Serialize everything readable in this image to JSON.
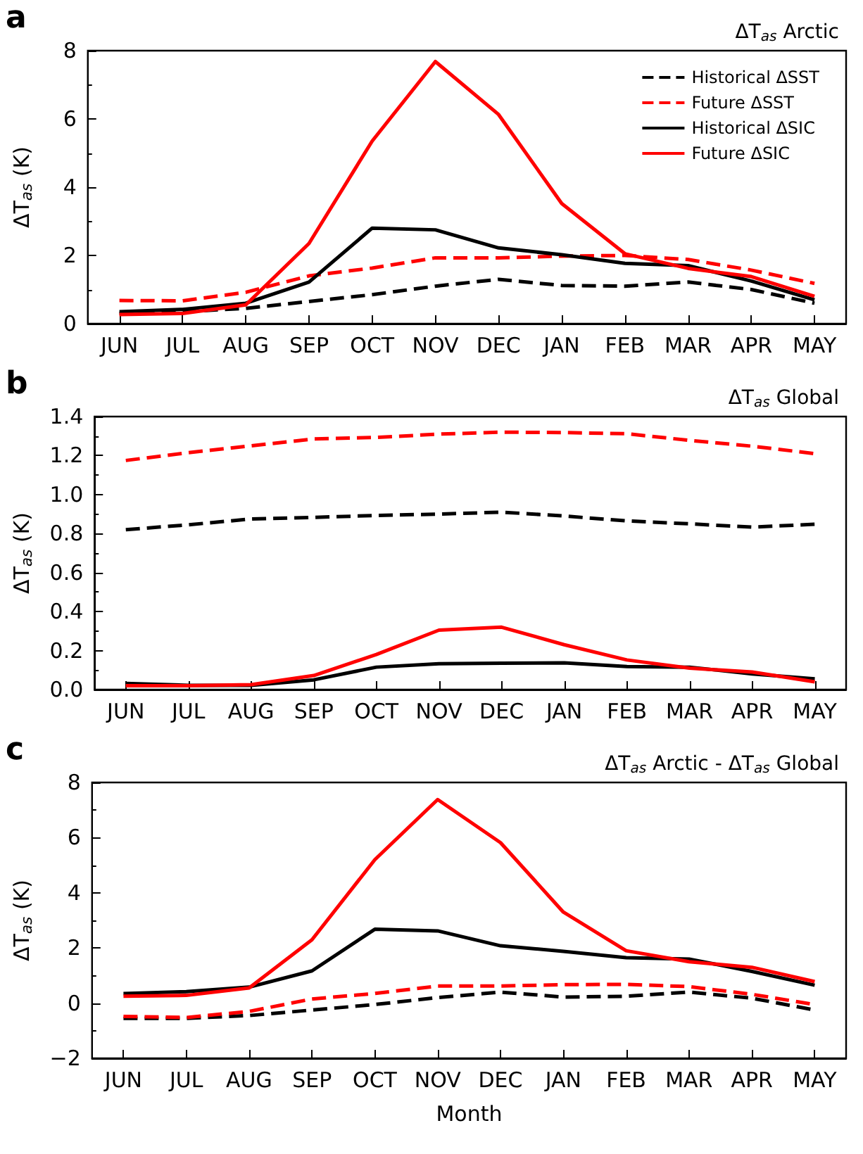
{
  "chart_data": [
    {
      "type": "line",
      "title": "ΔT$_{as}$ Arctic",
      "ylabel": "ΔT$_{as}$ (K)",
      "annotations": [
        "a"
      ],
      "categories": [
        "JUN",
        "JUL",
        "AUG",
        "SEP",
        "OCT",
        "NOV",
        "DEC",
        "JAN",
        "FEB",
        "MAR",
        "APR",
        "MAY"
      ],
      "ylim": [
        0,
        8
      ],
      "yticks": [
        0,
        2,
        4,
        6,
        8
      ],
      "legend": "top right",
      "grid": false,
      "series": [
        {
          "name": "Historical ΔSST",
          "color": "#000000",
          "line_style": "dashed",
          "values": [
            0.3,
            0.35,
            0.45,
            0.65,
            0.85,
            1.1,
            1.3,
            1.12,
            1.1,
            1.22,
            1.0,
            0.6
          ]
        },
        {
          "name": "Future ΔSST",
          "color": "#ff0000",
          "line_style": "dashed",
          "values": [
            0.68,
            0.67,
            0.92,
            1.4,
            1.63,
            1.93,
            1.93,
            1.98,
            2.0,
            1.88,
            1.57,
            1.18
          ]
        },
        {
          "name": "Historical ΔSIC",
          "color": "#000000",
          "line_style": "solid",
          "values": [
            0.35,
            0.42,
            0.6,
            1.22,
            2.8,
            2.75,
            2.22,
            2.02,
            1.77,
            1.7,
            1.25,
            0.7
          ]
        },
        {
          "name": "Future ΔSIC",
          "color": "#ff0000",
          "line_style": "solid",
          "values": [
            0.27,
            0.3,
            0.55,
            2.35,
            5.35,
            7.68,
            6.13,
            3.52,
            2.05,
            1.62,
            1.38,
            0.8
          ]
        }
      ]
    },
    {
      "type": "line",
      "title": "ΔT$_{as}$ Global",
      "ylabel": "ΔT$_{as}$ (K)",
      "annotations": [
        "b"
      ],
      "categories": [
        "JUN",
        "JUL",
        "AUG",
        "SEP",
        "OCT",
        "NOV",
        "DEC",
        "JAN",
        "FEB",
        "MAR",
        "APR",
        "MAY"
      ],
      "ylim": [
        0,
        1.4
      ],
      "yticks": [
        {
          "value": 0,
          "label": "0.0"
        },
        0.2,
        0.4,
        0.6,
        0.8,
        {
          "value": 1,
          "label": "1.0"
        },
        1.2,
        1.4
      ],
      "grid": false,
      "series": [
        {
          "color": "#000000",
          "line_style": "dashed",
          "values": [
            0.82,
            0.845,
            0.875,
            0.883,
            0.893,
            0.9,
            0.91,
            0.89,
            0.865,
            0.85,
            0.833,
            0.848
          ]
        },
        {
          "color": "#ff0000",
          "line_style": "dashed",
          "values": [
            1.175,
            1.215,
            1.25,
            1.285,
            1.293,
            1.31,
            1.32,
            1.318,
            1.312,
            1.278,
            1.248,
            1.21
          ]
        },
        {
          "color": "#000000",
          "line_style": "solid",
          "values": [
            0.032,
            0.022,
            0.022,
            0.05,
            0.115,
            0.133,
            0.135,
            0.137,
            0.118,
            0.115,
            0.08,
            0.055
          ]
        },
        {
          "color": "#ff0000",
          "line_style": "solid",
          "values": [
            0.02,
            0.02,
            0.025,
            0.072,
            0.18,
            0.305,
            0.32,
            0.23,
            0.152,
            0.11,
            0.09,
            0.04
          ]
        }
      ]
    },
    {
      "type": "line",
      "title": "ΔT$_{as}$ Arctic - ΔT$_{as}$ Global",
      "xlabel": "Month",
      "ylabel": "ΔT$_{as}$ (K)",
      "annotations": [
        "c"
      ],
      "categories": [
        "JUN",
        "JUL",
        "AUG",
        "SEP",
        "OCT",
        "NOV",
        "DEC",
        "JAN",
        "FEB",
        "MAR",
        "APR",
        "MAY"
      ],
      "ylim": [
        -2,
        8
      ],
      "yticks": [
        {
          "value": -2,
          "label": "−2"
        },
        0,
        2,
        4,
        6,
        8
      ],
      "grid": false,
      "series": [
        {
          "color": "#000000",
          "line_style": "dashed",
          "values": [
            -0.55,
            -0.55,
            -0.45,
            -0.25,
            -0.05,
            0.2,
            0.4,
            0.22,
            0.25,
            0.4,
            0.18,
            -0.25
          ]
        },
        {
          "color": "#ff0000",
          "line_style": "dashed",
          "values": [
            -0.48,
            -0.52,
            -0.3,
            0.15,
            0.35,
            0.62,
            0.62,
            0.67,
            0.68,
            0.6,
            0.32,
            -0.05
          ]
        },
        {
          "color": "#000000",
          "line_style": "solid",
          "values": [
            0.35,
            0.42,
            0.58,
            1.17,
            2.68,
            2.62,
            2.08,
            1.88,
            1.65,
            1.6,
            1.15,
            0.65
          ]
        },
        {
          "color": "#ff0000",
          "line_style": "solid",
          "values": [
            0.25,
            0.28,
            0.55,
            2.3,
            5.2,
            7.38,
            5.82,
            3.3,
            1.9,
            1.5,
            1.3,
            0.78
          ]
        }
      ]
    }
  ]
}
